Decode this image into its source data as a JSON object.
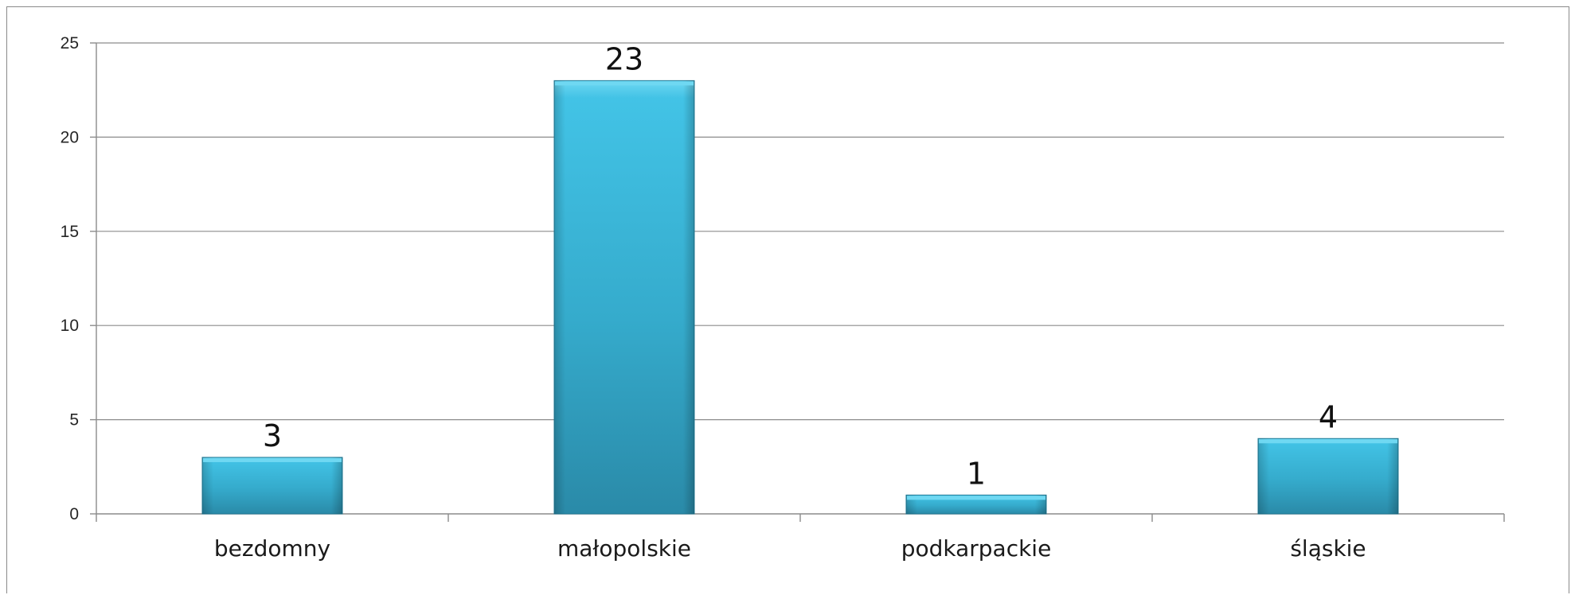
{
  "chart_data": {
    "type": "bar",
    "title": "",
    "xlabel": "",
    "ylabel": "",
    "categories": [
      "bezdomny",
      "małopolskie",
      "podkarpackie",
      "śląskie"
    ],
    "values": [
      3,
      23,
      1,
      4
    ],
    "data_labels": [
      "3",
      "23",
      "1",
      "4"
    ],
    "ylim": [
      0,
      25
    ],
    "yticks": [
      "0",
      "5",
      "10",
      "15",
      "20",
      "25"
    ],
    "grid": true,
    "legend": "none",
    "colors": {
      "bar_top": "#6fd8f2",
      "bar_mid": "#3ab6d8",
      "bar_bottom": "#2a8fae",
      "bar_edge": "#1f7a96",
      "grid": "#8c8c8c"
    }
  }
}
